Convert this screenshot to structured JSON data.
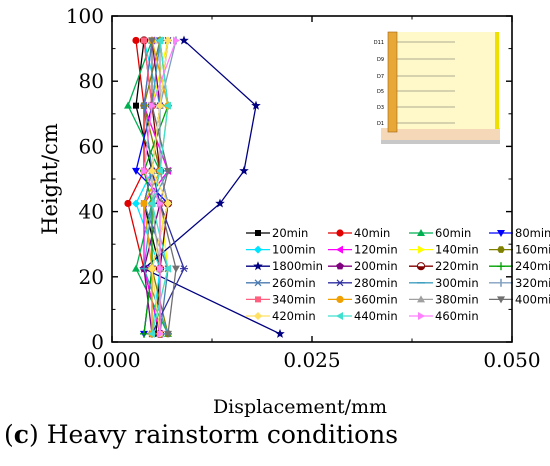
{
  "caption": {
    "letter": "c",
    "text": "Heavy rainstorm conditions"
  },
  "chart_data": {
    "type": "line",
    "xlabel": "Displacement/mm",
    "ylabel": "Height/cm",
    "xlim": [
      0,
      0.05
    ],
    "ylim": [
      0,
      100
    ],
    "x_ticks": [
      "0.000",
      "0.025",
      "0.050"
    ],
    "y_ticks": [
      "0",
      "20",
      "40",
      "60",
      "80",
      "100"
    ],
    "grid": false,
    "legend_position": "bottom-right",
    "inset_labels": [
      "D11",
      "D9",
      "D7",
      "D5",
      "D3",
      "D1"
    ],
    "y_levels": [
      92.5,
      72.5,
      52.5,
      42.5,
      22.5,
      2.5
    ],
    "series": [
      {
        "name": "20min",
        "marker": "square",
        "color": "#000000",
        "x": [
          0.004,
          0.003,
          0.005,
          0.004,
          0.006,
          0.0055
        ]
      },
      {
        "name": "40min",
        "marker": "circle",
        "color": "#e00000",
        "x": [
          0.003,
          0.004,
          0.004,
          0.002,
          0.004,
          0.006
        ]
      },
      {
        "name": "60min",
        "marker": "triangle",
        "color": "#00b050",
        "x": [
          0.005,
          0.002,
          0.006,
          0.005,
          0.003,
          0.007
        ]
      },
      {
        "name": "80min",
        "marker": "tri-down",
        "color": "#0000ff",
        "x": [
          0.006,
          0.005,
          0.003,
          0.007,
          0.005,
          0.004
        ]
      },
      {
        "name": "100min",
        "marker": "diamond",
        "color": "#00e5ff",
        "x": [
          0.004,
          0.006,
          0.005,
          0.003,
          0.006,
          0.005
        ]
      },
      {
        "name": "120min",
        "marker": "tri-left",
        "color": "#ff00ff",
        "x": [
          0.005,
          0.004,
          0.007,
          0.004,
          0.004,
          0.006
        ]
      },
      {
        "name": "140min",
        "marker": "tri-right",
        "color": "#ffff00",
        "x": [
          0.007,
          0.005,
          0.004,
          0.006,
          0.007,
          0.005
        ]
      },
      {
        "name": "160min",
        "marker": "hexagon",
        "color": "#808000",
        "x": [
          0.006,
          0.004,
          0.006,
          0.005,
          0.005,
          0.007
        ]
      },
      {
        "name": "1800min",
        "marker": "star",
        "color": "#000080",
        "x": [
          0.009,
          0.018,
          0.0165,
          0.0135,
          0.004,
          0.021
        ]
      },
      {
        "name": "200min",
        "marker": "pentagon",
        "color": "#800080",
        "x": [
          0.005,
          0.006,
          0.005,
          0.006,
          0.004,
          0.005
        ]
      },
      {
        "name": "220min",
        "marker": "half-circle",
        "color": "#800000",
        "x": [
          0.004,
          0.005,
          0.006,
          0.007,
          0.006,
          0.006
        ]
      },
      {
        "name": "240min",
        "marker": "plus",
        "color": "#00a000",
        "x": [
          0.006,
          0.007,
          0.004,
          0.005,
          0.005,
          0.004
        ]
      },
      {
        "name": "260min",
        "marker": "x",
        "color": "#4a7ab0",
        "x": [
          0.005,
          0.004,
          0.005,
          0.004,
          0.007,
          0.006
        ]
      },
      {
        "name": "280min",
        "marker": "asterisk",
        "color": "#3030a0",
        "x": [
          0.007,
          0.006,
          0.005,
          0.006,
          0.009,
          0.005
        ]
      },
      {
        "name": "300min",
        "marker": "dash",
        "color": "#40a0c0",
        "x": [
          0.006,
          0.005,
          0.007,
          0.005,
          0.004,
          0.007
        ]
      },
      {
        "name": "320min",
        "marker": "vbar",
        "color": "#80a0c0",
        "x": [
          0.008,
          0.006,
          0.006,
          0.007,
          0.005,
          0.005
        ]
      },
      {
        "name": "340min",
        "marker": "square",
        "color": "#ff6080",
        "x": [
          0.004,
          0.005,
          0.004,
          0.006,
          0.006,
          0.006
        ]
      },
      {
        "name": "360min",
        "marker": "circle",
        "color": "#f0a000",
        "x": [
          0.005,
          0.007,
          0.006,
          0.004,
          0.005,
          0.005
        ]
      },
      {
        "name": "380min",
        "marker": "triangle",
        "color": "#a0a0a0",
        "x": [
          0.006,
          0.006,
          0.005,
          0.005,
          0.006,
          0.006
        ]
      },
      {
        "name": "400min",
        "marker": "tri-down",
        "color": "#707070",
        "x": [
          0.005,
          0.005,
          0.007,
          0.006,
          0.008,
          0.007
        ]
      },
      {
        "name": "420min",
        "marker": "diamond",
        "color": "#ffe060",
        "x": [
          0.007,
          0.006,
          0.005,
          0.007,
          0.005,
          0.006
        ]
      },
      {
        "name": "440min",
        "marker": "tri-left",
        "color": "#40e0d0",
        "x": [
          0.006,
          0.007,
          0.006,
          0.005,
          0.007,
          0.005
        ]
      },
      {
        "name": "460min",
        "marker": "tri-right",
        "color": "#ff80ff",
        "x": [
          0.008,
          0.005,
          0.004,
          0.006,
          0.006,
          0.006
        ]
      }
    ]
  }
}
